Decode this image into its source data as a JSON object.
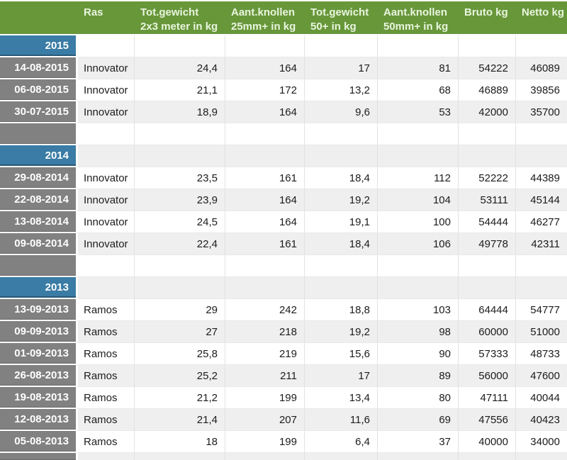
{
  "colors": {
    "header_bg": "#68973A",
    "header_text": "#E9F5DE",
    "year_cell_bg": "#3A7CA5",
    "date_cell_bg": "#818181",
    "row_bg": "#FFFFFF",
    "row_alt_bg": "#EFEFEF",
    "data_text": "#1C1C1C"
  },
  "table": {
    "columns": [
      "",
      "Ras",
      "Tot.gewicht\n2x3 meter in kg",
      "Aant.knollen\n25mm+ in kg",
      "Tot.gewicht\n50+ in kg",
      "Aant.knollen\n50mm+ in kg",
      "Bruto kg",
      "Netto kg"
    ],
    "rows": [
      {
        "type": "year",
        "label": "2015",
        "cells": [
          "",
          "",
          "",
          "",
          "",
          "",
          ""
        ]
      },
      {
        "type": "data",
        "label": "14-08-2015",
        "cells": [
          "Innovator",
          "24,4",
          "164",
          "17",
          "81",
          "54222",
          "46089"
        ]
      },
      {
        "type": "data",
        "label": "06-08-2015",
        "cells": [
          "Innovator",
          "21,1",
          "172",
          "13,2",
          "68",
          "46889",
          "39856"
        ]
      },
      {
        "type": "data",
        "label": "30-07-2015",
        "cells": [
          "Innovator",
          "18,9",
          "164",
          "9,6",
          "53",
          "42000",
          "35700"
        ]
      },
      {
        "type": "empty",
        "label": "",
        "cells": [
          "",
          "",
          "",
          "",
          "",
          "",
          ""
        ]
      },
      {
        "type": "year",
        "label": "2014",
        "cells": [
          "",
          "",
          "",
          "",
          "",
          "",
          ""
        ]
      },
      {
        "type": "data",
        "label": "29-08-2014",
        "cells": [
          "Innovator",
          "23,5",
          "161",
          "18,4",
          "112",
          "52222",
          "44389"
        ]
      },
      {
        "type": "data",
        "label": "22-08-2014",
        "cells": [
          "Innovator",
          "23,9",
          "164",
          "19,2",
          "104",
          "53111",
          "45144"
        ]
      },
      {
        "type": "data",
        "label": "13-08-2014",
        "cells": [
          "Innovator",
          "24,5",
          "164",
          "19,1",
          "100",
          "54444",
          "46277"
        ]
      },
      {
        "type": "data",
        "label": "09-08-2014",
        "cells": [
          "Innovator",
          "22,4",
          "161",
          "18,4",
          "106",
          "49778",
          "42311"
        ]
      },
      {
        "type": "empty",
        "label": "",
        "cells": [
          "",
          "",
          "",
          "",
          "",
          "",
          ""
        ]
      },
      {
        "type": "year",
        "label": "2013",
        "cells": [
          "",
          "",
          "",
          "",
          "",
          "",
          ""
        ]
      },
      {
        "type": "data",
        "label": "13-09-2013",
        "cells": [
          "Ramos",
          "29",
          "242",
          "18,8",
          "103",
          "64444",
          "54777"
        ]
      },
      {
        "type": "data",
        "label": "09-09-2013",
        "cells": [
          "Ramos",
          "27",
          "218",
          "19,2",
          "98",
          "60000",
          "51000"
        ]
      },
      {
        "type": "data",
        "label": "01-09-2013",
        "cells": [
          "Ramos",
          "25,8",
          "219",
          "15,6",
          "90",
          "57333",
          "48733"
        ]
      },
      {
        "type": "data",
        "label": "26-08-2013",
        "cells": [
          "Ramos",
          "25,2",
          "211",
          "17",
          "89",
          "56000",
          "47600"
        ]
      },
      {
        "type": "data",
        "label": "19-08-2013",
        "cells": [
          "Ramos",
          "21,2",
          "199",
          "13,4",
          "80",
          "47111",
          "40044"
        ]
      },
      {
        "type": "data",
        "label": "12-08-2013",
        "cells": [
          "Ramos",
          "21,4",
          "207",
          "11,6",
          "69",
          "47556",
          "40423"
        ]
      },
      {
        "type": "data",
        "label": "05-08-2013",
        "cells": [
          "Ramos",
          "18",
          "199",
          "6,4",
          "37",
          "40000",
          "34000"
        ]
      },
      {
        "type": "partial",
        "label": "",
        "cells": [
          "",
          "",
          "",
          "",
          "",
          "",
          ""
        ]
      }
    ]
  }
}
